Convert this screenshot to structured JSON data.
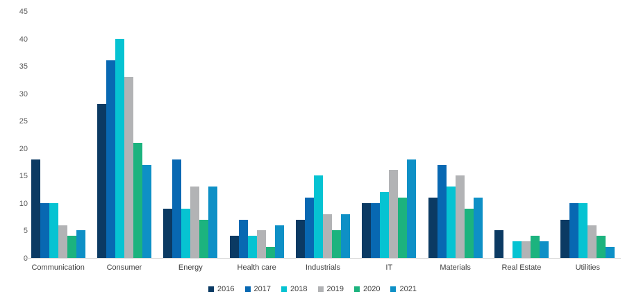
{
  "chart_data": {
    "type": "bar",
    "title": "",
    "xlabel": "",
    "ylabel": "",
    "ylim": [
      0,
      45
    ],
    "ytick_step": 5,
    "yticks": [
      0,
      5,
      10,
      15,
      20,
      25,
      30,
      35,
      40,
      45
    ],
    "grid": false,
    "legend_position": "bottom-center",
    "categories": [
      "Communication",
      "Consumer",
      "Energy",
      "Health care",
      "Industrials",
      "IT",
      "Materials",
      "Real Estate",
      "Utilities"
    ],
    "series": [
      {
        "name": "2016",
        "color": "#0b3a63",
        "values": [
          18,
          28,
          9,
          4,
          7,
          10,
          11,
          5,
          7
        ]
      },
      {
        "name": "2017",
        "color": "#0868b2",
        "values": [
          10,
          36,
          18,
          7,
          11,
          10,
          17,
          0,
          10
        ]
      },
      {
        "name": "2018",
        "color": "#06c3d2",
        "values": [
          10,
          40,
          9,
          4,
          15,
          12,
          13,
          3,
          10
        ]
      },
      {
        "name": "2019",
        "color": "#b2b3b5",
        "values": [
          6,
          33,
          13,
          5,
          8,
          16,
          15,
          3,
          6
        ]
      },
      {
        "name": "2020",
        "color": "#1cb37e",
        "values": [
          4,
          21,
          7,
          2,
          5,
          11,
          9,
          4,
          4
        ]
      },
      {
        "name": "2021",
        "color": "#0e90c6",
        "values": [
          5,
          17,
          13,
          6,
          8,
          18,
          11,
          3,
          2
        ]
      }
    ],
    "axis_colors": {
      "tick_label": "#595959",
      "category_label": "#404040",
      "axis_line": "#d6d6d6"
    }
  }
}
